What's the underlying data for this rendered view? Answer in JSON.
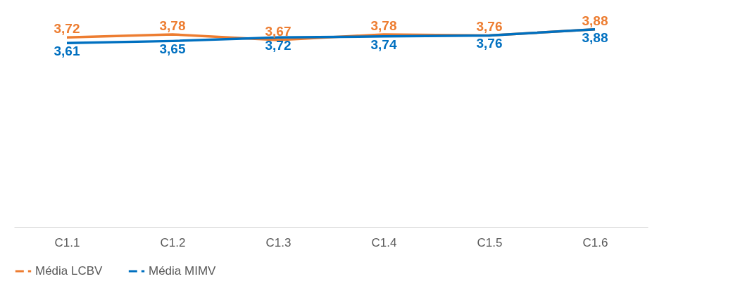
{
  "chart_data": {
    "type": "line",
    "categories": [
      "C1.1",
      "C1.2",
      "C1.3",
      "C1.4",
      "C1.5",
      "C1.6"
    ],
    "series": [
      {
        "name": "Média LCBV",
        "color": "#ed7d31",
        "values": [
          3.72,
          3.78,
          3.67,
          3.78,
          3.76,
          3.88
        ],
        "value_labels": [
          "3,72",
          "3,78",
          "3,67",
          "3,78",
          "3,76",
          "3,88"
        ]
      },
      {
        "name": "Média MIMV",
        "color": "#0070c0",
        "values": [
          3.61,
          3.65,
          3.72,
          3.74,
          3.76,
          3.88
        ],
        "value_labels": [
          "3,61",
          "3,65",
          "3,72",
          "3,74",
          "3,76",
          "3,88"
        ]
      }
    ],
    "tick_labels": "x",
    "grid": false,
    "legend": "bottom",
    "marker": "none",
    "line_style": "solid"
  }
}
